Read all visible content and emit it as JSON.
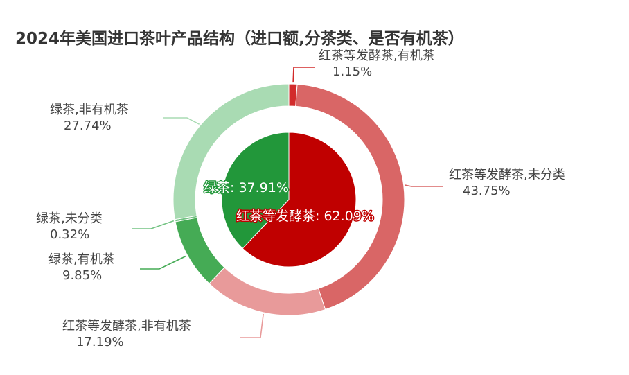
{
  "chart_data": {
    "type": "pie",
    "subtype": "nested-donut",
    "title": "2024年美国进口茶叶产品结构（进口额,分茶类、是否有机茶）",
    "inner": {
      "slices": [
        {
          "label": "红茶等发酵茶",
          "value": 62.09,
          "display": "红茶等发酵茶: 62.09%",
          "color": "#c00000"
        },
        {
          "label": "绿茶",
          "value": 37.91,
          "display": "绿茶: 37.91%",
          "color": "#22973a"
        }
      ]
    },
    "outer": {
      "slices": [
        {
          "name": "红茶等发酵茶,有机茶",
          "pct": "1.15%",
          "value": 1.15,
          "color": "#d22b2b"
        },
        {
          "name": "红茶等发酵茶,未分类",
          "pct": "43.75%",
          "value": 43.75,
          "color": "#d96666"
        },
        {
          "name": "红茶等发酵茶,非有机茶",
          "pct": "17.19%",
          "value": 17.19,
          "color": "#e89a9a"
        },
        {
          "name": "绿茶,有机茶",
          "pct": "9.85%",
          "value": 9.85,
          "color": "#45ab55"
        },
        {
          "name": "绿茶,未分类",
          "pct": "0.32%",
          "value": 0.32,
          "color": "#73c383"
        },
        {
          "name": "绿茶,非有机茶",
          "pct": "27.74%",
          "value": 27.74,
          "color": "#a9dbb3"
        }
      ]
    }
  }
}
